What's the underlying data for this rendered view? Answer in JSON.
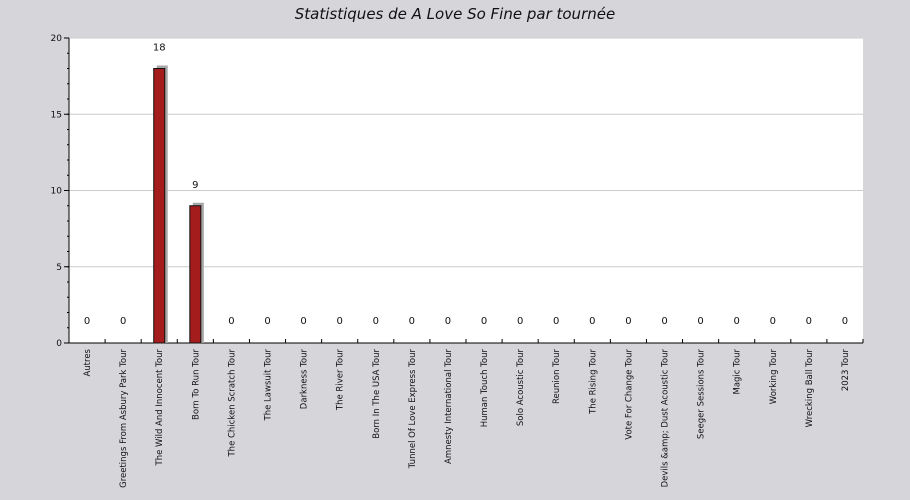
{
  "chart_data": {
    "type": "bar",
    "title": "Statistiques de A Love So Fine par tournée",
    "xlabel": "",
    "ylabel": "",
    "ylim": [
      0,
      20
    ],
    "yticks": [
      0,
      5,
      10,
      15,
      20
    ],
    "grid": true,
    "categories": [
      "Autres",
      "Greetings From Asbury Park Tour",
      "The Wild And Innocent Tour",
      "Born To Run Tour",
      "The Chicken Scratch Tour",
      "The Lawsuit Tour",
      "Darkness Tour",
      "The River Tour",
      "Born In The USA Tour",
      "Tunnel Of Love Express Tour",
      "Amnesty International Tour",
      "Human Touch Tour",
      "Solo Acoustic Tour",
      "Reunion Tour",
      "The Rising Tour",
      "Vote For Change Tour",
      "Devils &amp; Dust Acoustic Tour",
      "Seeger Sessions Tour",
      "Magic Tour",
      "Working Tour",
      "Wrecking Ball Tour",
      "2023 Tour"
    ],
    "values": [
      0,
      0,
      18,
      9,
      0,
      0,
      0,
      0,
      0,
      0,
      0,
      0,
      0,
      0,
      0,
      0,
      0,
      0,
      0,
      0,
      0,
      0
    ],
    "value_labels": [
      "0",
      "0",
      "18",
      "9",
      "0",
      "0",
      "0",
      "0",
      "0",
      "0",
      "0",
      "0",
      "0",
      "0",
      "0",
      "0",
      "0",
      "0",
      "0",
      "0",
      "0",
      "0"
    ],
    "bar_color": "#a51c1c",
    "shadow_color": "#a7a7a7",
    "plot_background": "#ffffff",
    "grid_color": "#cccccc"
  }
}
